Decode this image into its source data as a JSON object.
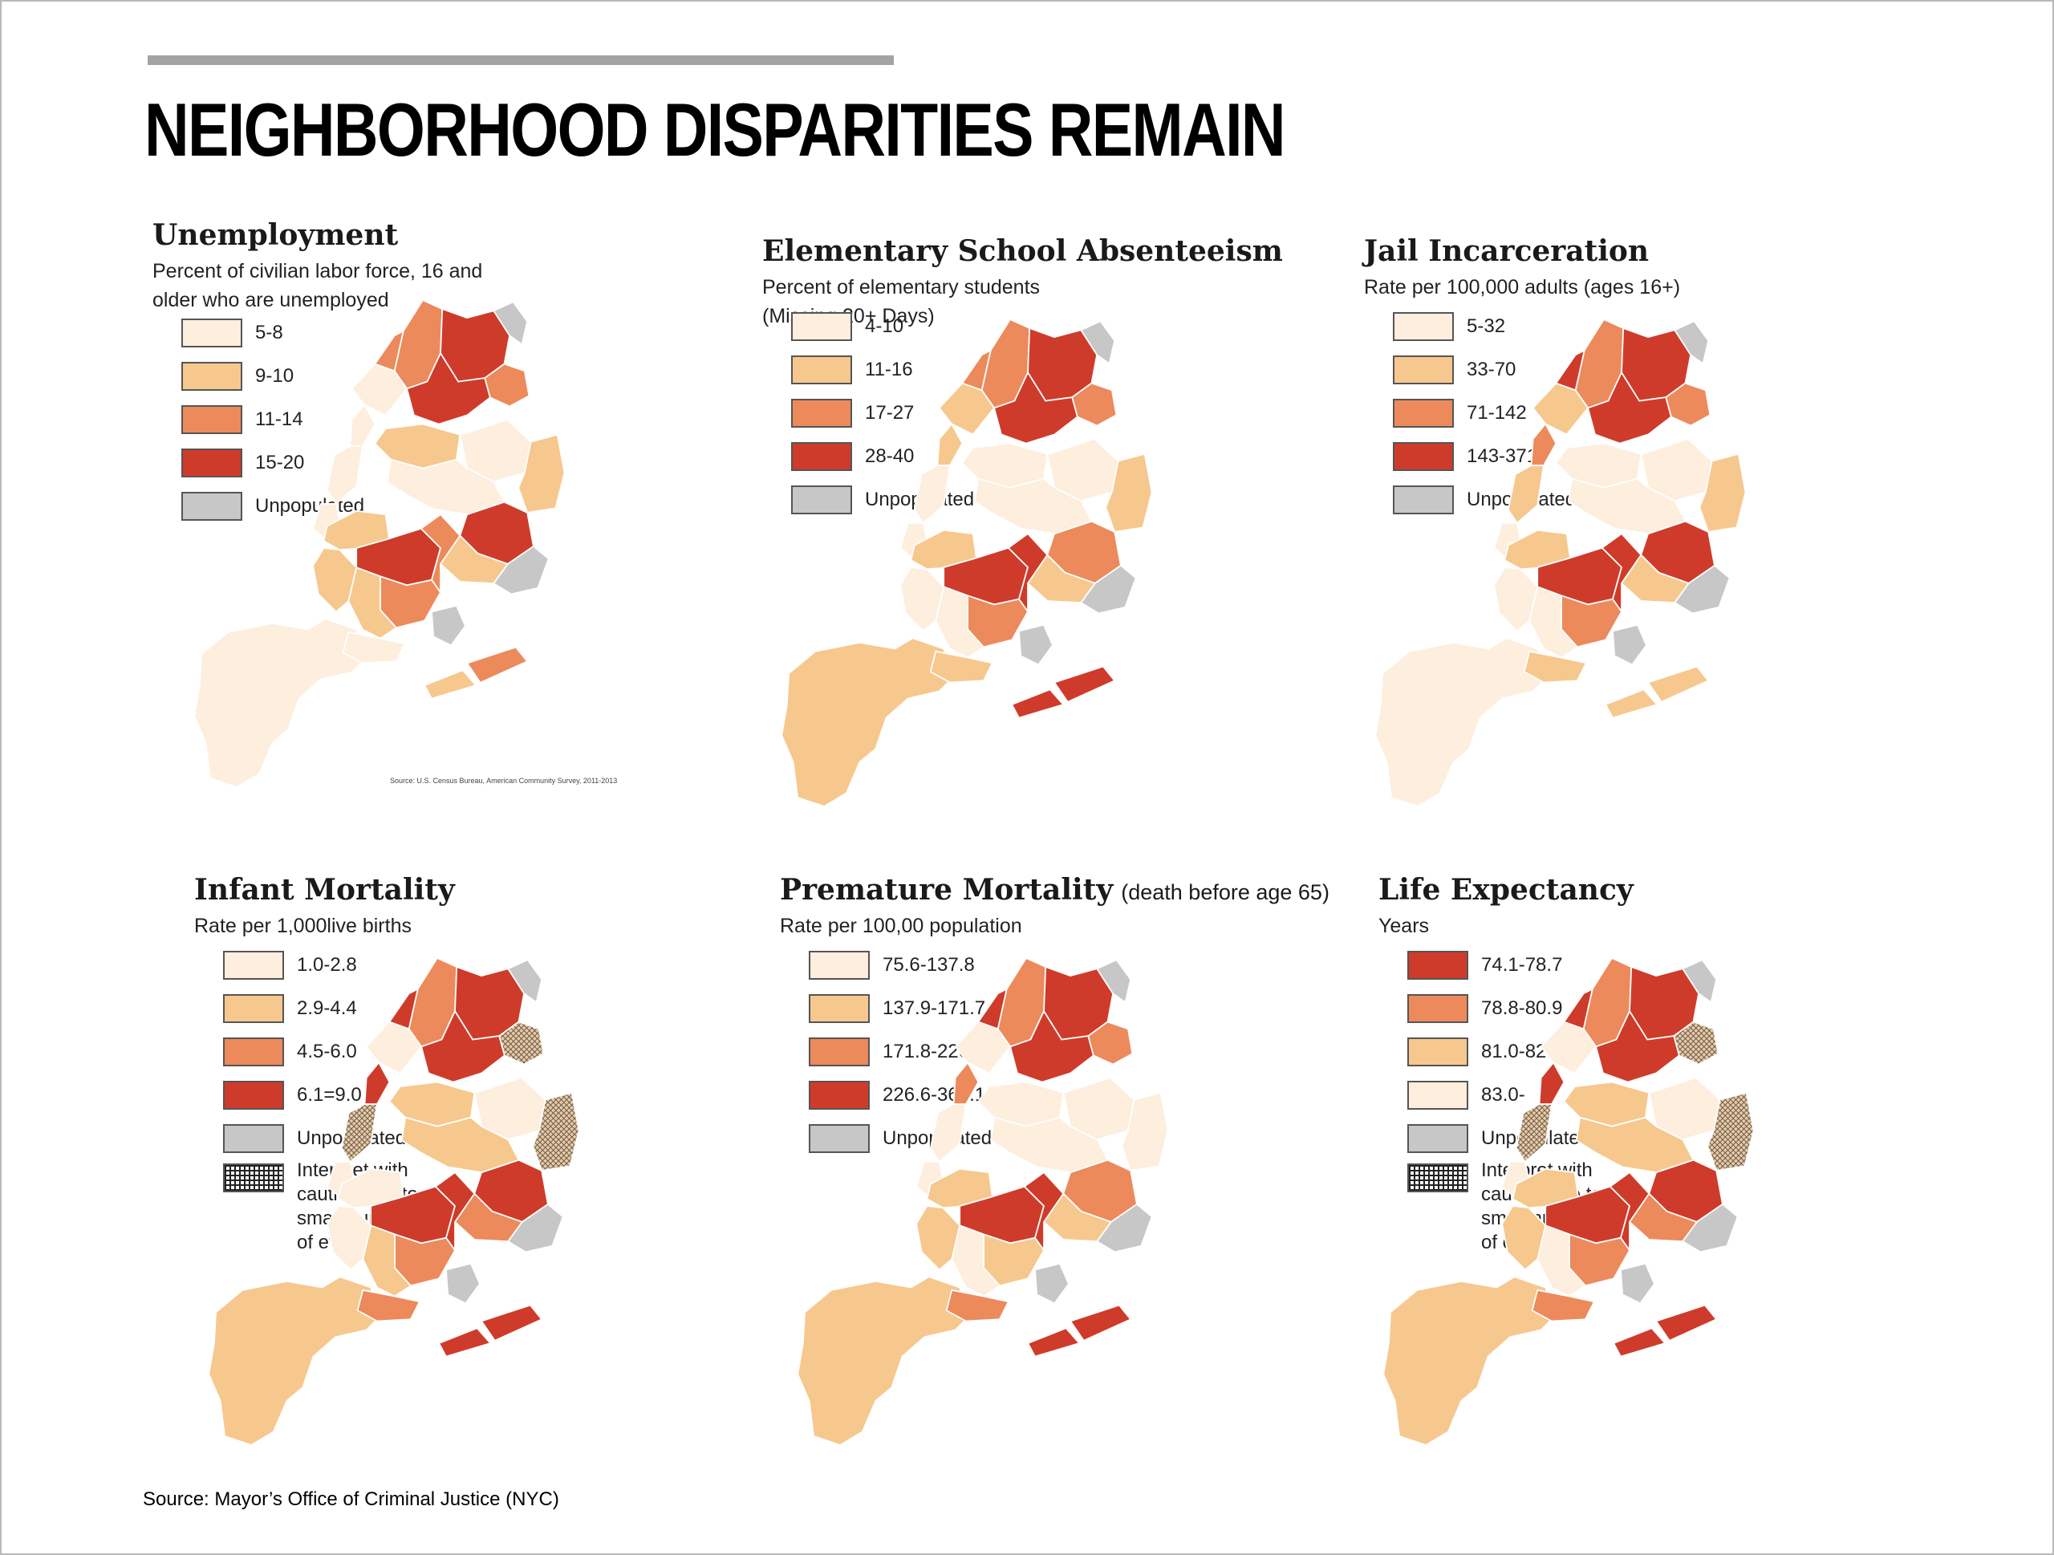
{
  "title": "NEIGHBORHOOD DISPARITIES REMAIN",
  "source": "Source: Mayor’s Office of Criminal Justice (NYC)",
  "colors": {
    "light": "#fdeedd",
    "mid": "#f6c88e",
    "orange": "#ec8a5c",
    "red": "#cf3b2a",
    "gray": "#c7c7c7",
    "outline": "#ffffff",
    "rule": "#a3a3a3"
  },
  "panels": [
    {
      "id": "unemployment",
      "title": "Unemployment",
      "note": "",
      "subtitle": "Percent of civilian labor force, 16 and older who are unemployed",
      "legend": [
        {
          "label": "5-8",
          "color": "#fdeedd"
        },
        {
          "label": "9-10",
          "color": "#f6c88e"
        },
        {
          "label": "11-14",
          "color": "#ec8a5c"
        },
        {
          "label": "15-20",
          "color": "#cf3b2a"
        },
        {
          "label": "Unpopulated",
          "color": "#c7c7c7"
        }
      ],
      "map_source": "Source: U.S. Census Bureau, American Community Survey, 2011-2013"
    },
    {
      "id": "absenteeism",
      "title": "Elementary School Absenteeism",
      "note": "",
      "subtitle": "Percent of elementary students (Missing 20+ Days)",
      "legend": [
        {
          "label": "4-10",
          "color": "#fdeedd"
        },
        {
          "label": "11-16",
          "color": "#f6c88e"
        },
        {
          "label": "17-27",
          "color": "#ec8a5c"
        },
        {
          "label": "28-40",
          "color": "#cf3b2a"
        },
        {
          "label": "Unpopulated",
          "color": "#c7c7c7"
        }
      ]
    },
    {
      "id": "jail",
      "title": "Jail Incarceration",
      "note": "",
      "subtitle": "Rate per 100,000 adults (ages 16+)",
      "legend": [
        {
          "label": "5-32",
          "color": "#fdeedd"
        },
        {
          "label": "33-70",
          "color": "#f6c88e"
        },
        {
          "label": "71-142",
          "color": "#ec8a5c"
        },
        {
          "label": "143-371",
          "color": "#cf3b2a"
        },
        {
          "label": "Unpopulated",
          "color": "#c7c7c7"
        }
      ]
    },
    {
      "id": "infant",
      "title": "Infant Mortality",
      "note": "",
      "subtitle": "Rate per 1,000live births",
      "legend": [
        {
          "label": "1.0-2.8",
          "color": "#fdeedd"
        },
        {
          "label": "2.9-4.4",
          "color": "#f6c88e"
        },
        {
          "label": "4.5-6.0",
          "color": "#ec8a5c"
        },
        {
          "label": "6.1=9.0",
          "color": "#cf3b2a"
        },
        {
          "label": "Unpopulated",
          "color": "#c7c7c7"
        },
        {
          "label": "Interpret with caution due to small number of events",
          "color": "hatch"
        }
      ]
    },
    {
      "id": "premature",
      "title": "Premature Mortality",
      "note": "(death before age 65)",
      "subtitle": "Rate per 100,00 population",
      "legend": [
        {
          "label": "75.6-137.8",
          "color": "#fdeedd"
        },
        {
          "label": "137.9-171.7",
          "color": "#f6c88e"
        },
        {
          "label": "171.8-226.5",
          "color": "#ec8a5c"
        },
        {
          "label": "226.6-367.1",
          "color": "#cf3b2a"
        },
        {
          "label": "Unpopulated",
          "color": "#c7c7c7"
        }
      ]
    },
    {
      "id": "life",
      "title": "Life Expectancy",
      "note": "",
      "subtitle": "Years",
      "legend": [
        {
          "label": "74.1-78.7",
          "color": "#cf3b2a"
        },
        {
          "label": "78.8-80.9",
          "color": "#ec8a5c"
        },
        {
          "label": "81.0-82.9",
          "color": "#f6c88e"
        },
        {
          "label": "83.0-",
          "color": "#fdeedd"
        },
        {
          "label": "Unpopulated",
          "color": "#c7c7c7"
        },
        {
          "label": "Interpret with caution due to small number of events",
          "color": "hatch"
        }
      ]
    }
  ],
  "maps": {
    "unemployment": {
      "staten_island": "L",
      "sunnyside": "L",
      "nw_bronx": "O",
      "north_bronx": "R",
      "east_bronx": "O",
      "south_bronx": "R",
      "ne_bronx": "G",
      "upper_manhattan": "L",
      "harlem": "O",
      "midtown": "L",
      "lower_manhattan": "L",
      "north_queens": "M",
      "flushing": "L",
      "east_queens": "M",
      "jamaica": "R",
      "central_queens": "L",
      "south_queens": "M",
      "jfk": "G",
      "n_brooklyn": "M",
      "c_brooklyn": "R",
      "e_brooklyn": "O",
      "se_brooklyn": "O",
      "s_brooklyn": "M",
      "sw_brooklyn": "M",
      "coney": "L",
      "rockaway_w": "M",
      "rockaway_e": "O",
      "jamaica_bay": "G"
    },
    "absenteeism": {
      "staten_island": "M",
      "sunnyside": "M",
      "nw_bronx": "O",
      "north_bronx": "R",
      "east_bronx": "O",
      "south_bronx": "R",
      "ne_bronx": "G",
      "upper_manhattan": "M",
      "harlem": "O",
      "midtown": "L",
      "lower_manhattan": "L",
      "north_queens": "L",
      "flushing": "L",
      "east_queens": "M",
      "jamaica": "O",
      "central_queens": "L",
      "south_queens": "M",
      "jfk": "G",
      "n_brooklyn": "M",
      "c_brooklyn": "R",
      "e_brooklyn": "R",
      "se_brooklyn": "O",
      "s_brooklyn": "L",
      "sw_brooklyn": "L",
      "coney": "M",
      "rockaway_w": "R",
      "rockaway_e": "R",
      "jamaica_bay": "G"
    },
    "jail": {
      "staten_island": "L",
      "sunnyside": "O",
      "nw_bronx": "O",
      "north_bronx": "R",
      "east_bronx": "O",
      "south_bronx": "R",
      "ne_bronx": "G",
      "upper_manhattan": "M",
      "harlem": "R",
      "midtown": "M",
      "lower_manhattan": "L",
      "north_queens": "L",
      "flushing": "L",
      "east_queens": "M",
      "jamaica": "R",
      "central_queens": "L",
      "south_queens": "M",
      "jfk": "G",
      "n_brooklyn": "M",
      "c_brooklyn": "R",
      "e_brooklyn": "R",
      "se_brooklyn": "O",
      "s_brooklyn": "L",
      "sw_brooklyn": "L",
      "coney": "M",
      "rockaway_w": "M",
      "rockaway_e": "M",
      "jamaica_bay": "G"
    },
    "infant": {
      "staten_island": "M",
      "sunnyside": "R",
      "nw_bronx": "O",
      "north_bronx": "R",
      "east_bronx": "H",
      "south_bronx": "R",
      "ne_bronx": "G",
      "upper_manhattan": "L",
      "harlem": "R",
      "midtown": "H",
      "lower_manhattan": "L",
      "north_queens": "M",
      "flushing": "L",
      "east_queens": "H",
      "jamaica": "R",
      "central_queens": "M",
      "south_queens": "O",
      "jfk": "G",
      "n_brooklyn": "L",
      "c_brooklyn": "R",
      "e_brooklyn": "R",
      "se_brooklyn": "O",
      "s_brooklyn": "M",
      "sw_brooklyn": "L",
      "coney": "O",
      "rockaway_w": "R",
      "rockaway_e": "R",
      "jamaica_bay": "G"
    },
    "premature": {
      "staten_island": "M",
      "sunnyside": "O",
      "nw_bronx": "O",
      "north_bronx": "R",
      "east_bronx": "O",
      "south_bronx": "R",
      "ne_bronx": "G",
      "upper_manhattan": "L",
      "harlem": "R",
      "midtown": "L",
      "lower_manhattan": "L",
      "north_queens": "L",
      "flushing": "L",
      "east_queens": "L",
      "jamaica": "O",
      "central_queens": "L",
      "south_queens": "M",
      "jfk": "G",
      "n_brooklyn": "M",
      "c_brooklyn": "R",
      "e_brooklyn": "R",
      "se_brooklyn": "M",
      "s_brooklyn": "L",
      "sw_brooklyn": "M",
      "coney": "O",
      "rockaway_w": "R",
      "rockaway_e": "R",
      "jamaica_bay": "G"
    },
    "life": {
      "staten_island": "M",
      "sunnyside": "R",
      "nw_bronx": "O",
      "north_bronx": "R",
      "east_bronx": "H",
      "south_bronx": "R",
      "ne_bronx": "G",
      "upper_manhattan": "L",
      "harlem": "R",
      "midtown": "H",
      "lower_manhattan": "L",
      "north_queens": "M",
      "flushing": "L",
      "east_queens": "H",
      "jamaica": "R",
      "central_queens": "M",
      "south_queens": "O",
      "jfk": "G",
      "n_brooklyn": "M",
      "c_brooklyn": "R",
      "e_brooklyn": "R",
      "se_brooklyn": "O",
      "s_brooklyn": "L",
      "sw_brooklyn": "M",
      "coney": "O",
      "rockaway_w": "R",
      "rockaway_e": "R",
      "jamaica_bay": "G"
    }
  }
}
